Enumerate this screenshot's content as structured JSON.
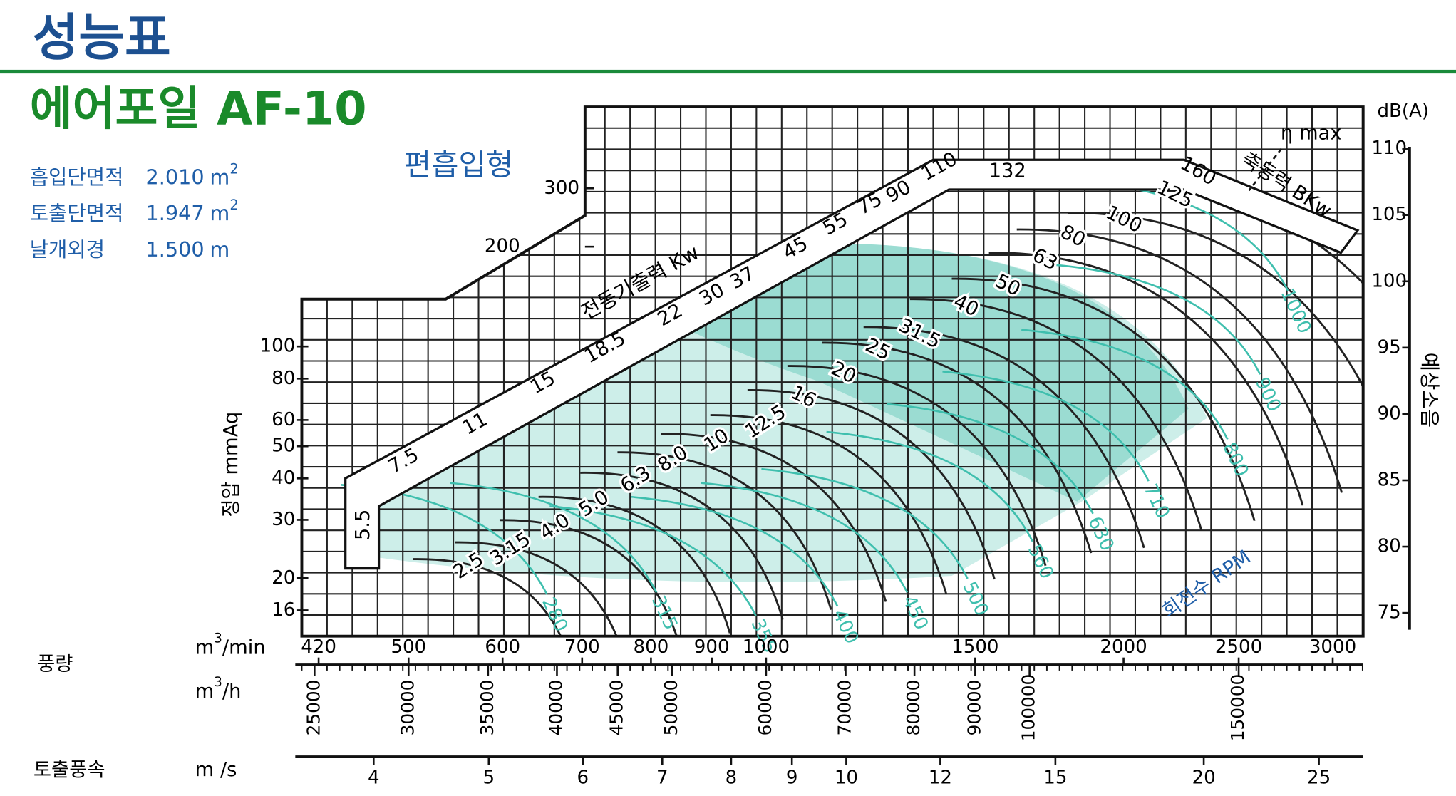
{
  "header": {
    "title": "성능표",
    "model": "에어포일 AF-10"
  },
  "specs": [
    {
      "label": "흡입단면적",
      "value": "2.010",
      "unit": "m",
      "sup": "2"
    },
    {
      "label": "토출단면적",
      "value": "1.947",
      "unit": "m",
      "sup": "2"
    },
    {
      "label": "날개외경",
      "value": "1.500",
      "unit": "m"
    }
  ],
  "chart": {
    "inlet_type": "편흡입형",
    "y_label": "정압 mmAq",
    "yticks": [
      16,
      20,
      30,
      40,
      50,
      60,
      80,
      100,
      200,
      300
    ],
    "y2_label": "예상소음",
    "y2_unit": "dB(A)",
    "y2ticks": [
      75,
      80,
      85,
      90,
      95,
      100,
      105,
      110
    ],
    "flow_label": "풍량",
    "x_unit_min": {
      "base": "m",
      "sup": "3",
      "rest": "/min"
    },
    "x_unit_h": {
      "base": "m",
      "sup": "3",
      "rest": "/h"
    },
    "xticks_min": [
      420,
      500,
      600,
      700,
      800,
      900,
      1000,
      1500,
      2000,
      2500,
      3000
    ],
    "xticks_h": [
      25000,
      30000,
      35000,
      40000,
      45000,
      50000,
      60000,
      70000,
      80000,
      90000,
      100000,
      150000
    ],
    "velocity_label": "토출풍속",
    "velocity_unit": "m /s",
    "xticks_ms": [
      4,
      5,
      6,
      7,
      8,
      9,
      10,
      12,
      15,
      20,
      25
    ],
    "motor_label": "전동기출력 Kw",
    "motor_kw": [
      5.5,
      7.5,
      11,
      15,
      18.5,
      22,
      30,
      37,
      45,
      55,
      75,
      90,
      110,
      132,
      160
    ],
    "bkw_label": "축동력 BKw",
    "bkw": [
      "2.5",
      "3.15",
      "4.0",
      "5.0",
      "6.3",
      "8.0",
      "10",
      "12.5",
      "16",
      "20",
      "25",
      "31.5",
      "40",
      "50",
      "63",
      "80",
      "100",
      "125"
    ],
    "rpm_label": "회전수 RPM",
    "rpm": [
      280,
      315,
      355,
      400,
      450,
      500,
      560,
      630,
      710,
      800,
      900,
      1000
    ],
    "eta_label": "η max"
  }
}
